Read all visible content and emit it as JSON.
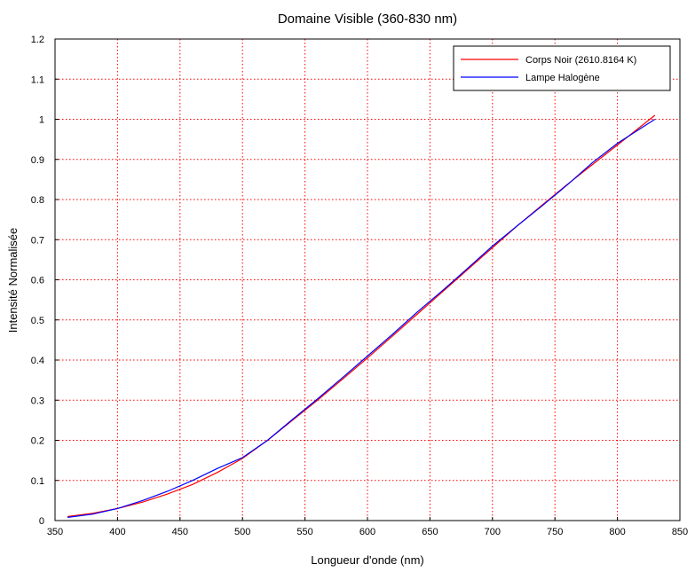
{
  "chart_data": {
    "type": "line",
    "title": "Domaine Visible (360-830 nm)",
    "xlabel": "Longueur d'onde (nm)",
    "ylabel": "Intensité Normalisée",
    "xlim": [
      350,
      850
    ],
    "ylim": [
      0,
      1.2
    ],
    "xticks": [
      350,
      400,
      450,
      500,
      550,
      600,
      650,
      700,
      750,
      800,
      850
    ],
    "yticks": [
      0,
      0.1,
      0.2,
      0.3,
      0.4,
      0.5,
      0.6,
      0.7,
      0.8,
      0.9,
      1,
      1.1,
      1.2
    ],
    "grid": true,
    "legend_position": "top-right",
    "series": [
      {
        "name": "Corps Noir (2610.8164 K)",
        "color": "#ff0000",
        "x": [
          360,
          380,
          400,
          420,
          440,
          460,
          480,
          500,
          520,
          540,
          560,
          580,
          600,
          620,
          640,
          660,
          680,
          700,
          720,
          740,
          760,
          780,
          800,
          830
        ],
        "y": [
          0.01,
          0.018,
          0.03,
          0.046,
          0.066,
          0.09,
          0.12,
          0.155,
          0.2,
          0.25,
          0.3,
          0.352,
          0.405,
          0.46,
          0.515,
          0.57,
          0.625,
          0.68,
          0.735,
          0.787,
          0.838,
          0.887,
          0.936,
          1.01
        ]
      },
      {
        "name": "Lampe Halogène",
        "color": "#0000ff",
        "x": [
          360,
          380,
          400,
          420,
          440,
          460,
          480,
          500,
          520,
          540,
          560,
          580,
          600,
          620,
          640,
          660,
          680,
          700,
          720,
          740,
          760,
          780,
          800,
          830
        ],
        "y": [
          0.008,
          0.016,
          0.03,
          0.05,
          0.073,
          0.1,
          0.13,
          0.157,
          0.2,
          0.252,
          0.303,
          0.356,
          0.41,
          0.464,
          0.52,
          0.573,
          0.628,
          0.684,
          0.735,
          0.785,
          0.837,
          0.892,
          0.94,
          1.0
        ]
      }
    ]
  }
}
